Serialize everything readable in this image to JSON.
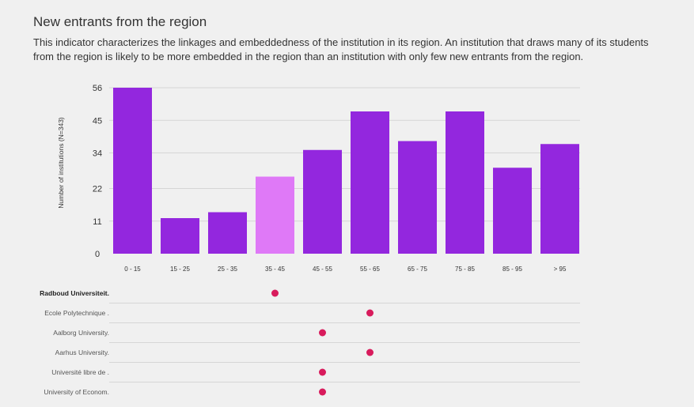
{
  "header": {
    "title": "New entrants from the region",
    "description": "This indicator characterizes the linkages and embeddedness of the institution in its region. An institution that draws many of its students from the region is likely to be more embedded in the region than an institution with only few new entrants from the region."
  },
  "colors": {
    "bar": "#9327de",
    "highlight_bar": "#df79f7",
    "dot": "#d81b5c",
    "grid": "#d6d6d6",
    "background": "#f0f0f0"
  },
  "chart_data": {
    "type": "bar",
    "title": "",
    "xlabel": "",
    "ylabel": "Number of institutions (N=343)",
    "categories": [
      "0 - 15",
      "15 - 25",
      "25 - 35",
      "35 - 45",
      "45 - 55",
      "55 - 65",
      "65 - 75",
      "75 - 85",
      "85 - 95",
      "> 95"
    ],
    "values": [
      56,
      12,
      14,
      26,
      35,
      48,
      38,
      48,
      29,
      37
    ],
    "highlight_index": 3,
    "yticks": [
      0,
      11,
      22,
      34,
      45,
      56
    ],
    "ylim": [
      0,
      56
    ],
    "grid": true,
    "institutions": [
      {
        "name": "Radboud Universiteit.",
        "category_index": 3,
        "bold": true
      },
      {
        "name": "Ecole Polytechnique .",
        "category_index": 5,
        "bold": false
      },
      {
        "name": "Aalborg University.",
        "category_index": 4,
        "bold": false
      },
      {
        "name": "Aarhus University.",
        "category_index": 5,
        "bold": false
      },
      {
        "name": "Université libre de .",
        "category_index": 4,
        "bold": false
      },
      {
        "name": "University of Econom.",
        "category_index": 4,
        "bold": false
      }
    ]
  }
}
